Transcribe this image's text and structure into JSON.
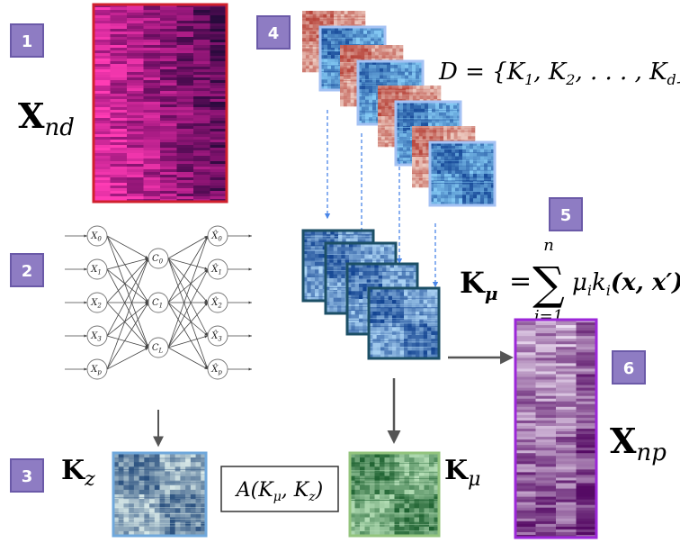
{
  "steps": [
    "1",
    "2",
    "3",
    "4",
    "5",
    "6"
  ],
  "labels": {
    "x_nd": {
      "main": "X",
      "sub": "nd"
    },
    "x_np": {
      "main": "X",
      "sub": "np"
    },
    "k_z": {
      "main": "K",
      "sub": "z"
    },
    "k_mu": {
      "main": "K",
      "sub": "μ"
    },
    "alignment": "A(K",
    "alignment_mid": ", K",
    "alignment_end": ")",
    "alignment_sub1": "μ",
    "alignment_sub2": "z",
    "set_d": "D = {K",
    "set_d_rest": ", K",
    "set_d_dots": ", . . . , K",
    "set_d_end": "}",
    "set_sub1": "1",
    "set_sub2": "2",
    "set_subd": "d",
    "kmu_formula": {
      "lhs_main": "K",
      "lhs_sub": "μ",
      "eq": "=",
      "sigma": "∑",
      "upper": "n",
      "lower": "i=1",
      "term": "μ",
      "term_sub": "i",
      "k": "k",
      "k_sub": "i",
      "args": "(x, x′)"
    }
  },
  "network": {
    "inputs": [
      "X",
      "X",
      "X",
      "X",
      "X"
    ],
    "input_subs": [
      "0",
      "1",
      "2",
      "3",
      "p"
    ],
    "code": [
      "C",
      "C",
      "C"
    ],
    "code_subs": [
      "0",
      "1",
      "L"
    ],
    "outputs": [
      "X̂",
      "X̂",
      "X̂",
      "X̂",
      "X̂"
    ],
    "output_subs": [
      "0",
      "1",
      "2",
      "3",
      "p"
    ]
  },
  "colors": {
    "step_badge": "#8e7cc3",
    "step_badge_border": "#6b5aa8",
    "heatmap_pink_border": "#d0202e",
    "heatmap_purple_border": "#9c27d9",
    "kz_border": "#6fa8dc",
    "kmu_border": "#93c47d",
    "kernel_stack_border": "#1c4f66",
    "arrow": "#555555",
    "dashed_arrow": "#4a86e8"
  }
}
